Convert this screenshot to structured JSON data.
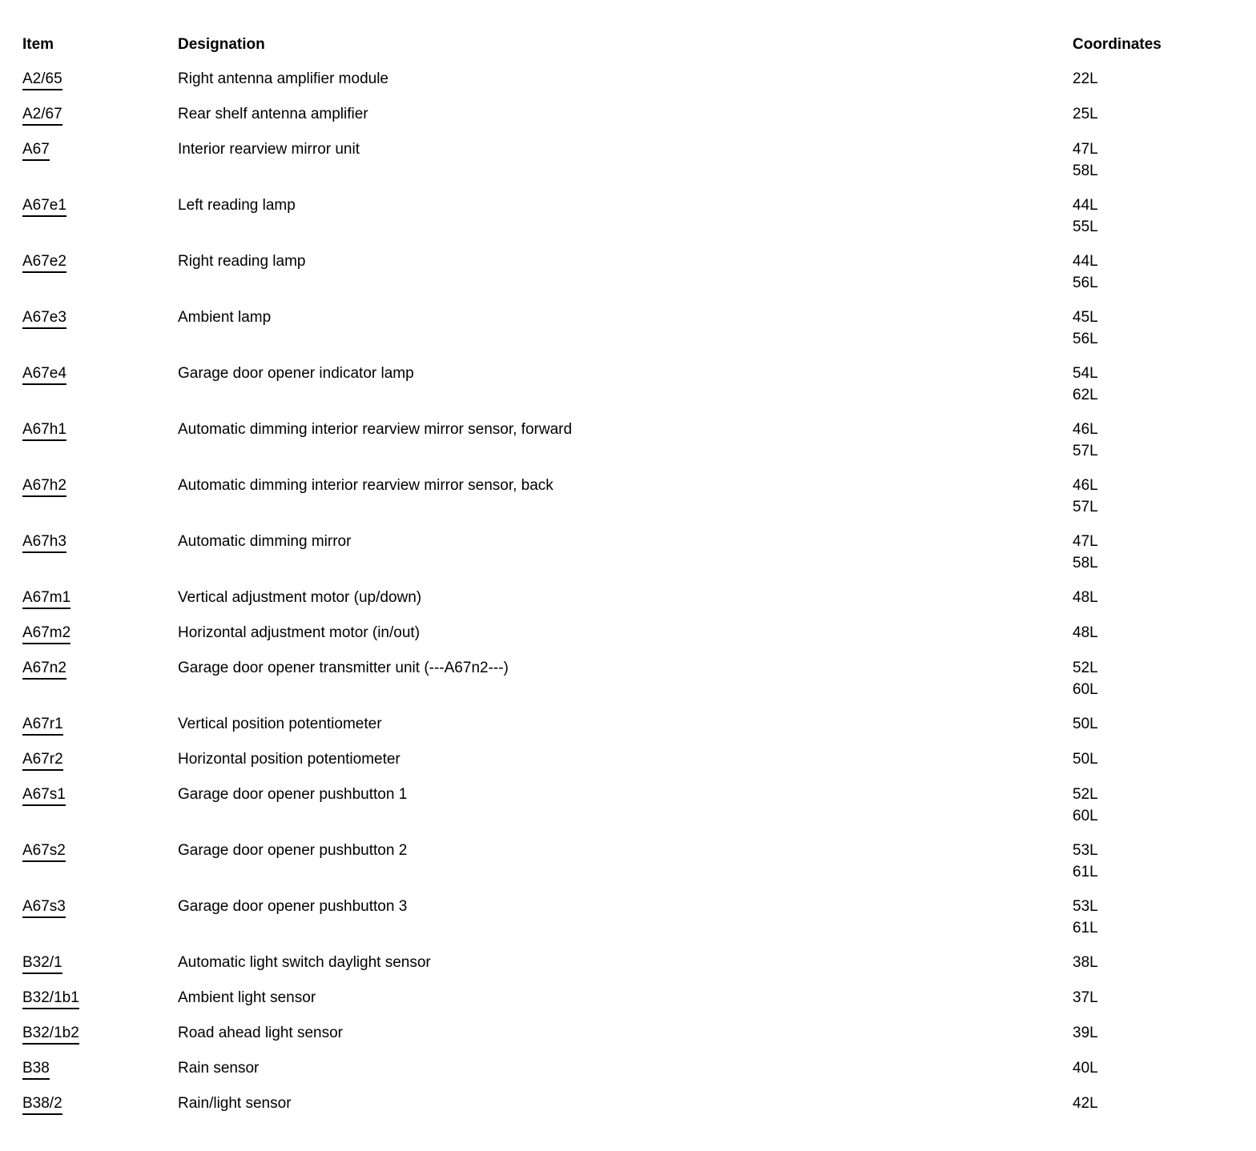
{
  "colors": {
    "text": "#000000",
    "background": "#ffffff"
  },
  "table": {
    "headers": {
      "item": "Item",
      "designation": "Designation",
      "coordinates": "Coordinates"
    },
    "rows": [
      {
        "item": "A2/65",
        "designation": "Right antenna amplifier module",
        "coordinates": [
          "22L"
        ]
      },
      {
        "item": "A2/67",
        "designation": "Rear shelf antenna amplifier",
        "coordinates": [
          "25L"
        ]
      },
      {
        "item": "A67",
        "designation": "Interior rearview mirror unit",
        "coordinates": [
          "47L",
          "58L"
        ]
      },
      {
        "item": "A67e1",
        "designation": "Left reading lamp",
        "coordinates": [
          "44L",
          "55L"
        ]
      },
      {
        "item": "A67e2",
        "designation": "Right reading lamp",
        "coordinates": [
          "44L",
          "56L"
        ]
      },
      {
        "item": "A67e3",
        "designation": "Ambient lamp",
        "coordinates": [
          "45L",
          "56L"
        ]
      },
      {
        "item": "A67e4",
        "designation": "Garage door opener indicator lamp",
        "coordinates": [
          "54L",
          "62L"
        ]
      },
      {
        "item": "A67h1",
        "designation": "Automatic dimming interior rearview mirror sensor, forward",
        "coordinates": [
          "46L",
          "57L"
        ]
      },
      {
        "item": "A67h2",
        "designation": "Automatic dimming interior rearview mirror sensor, back",
        "coordinates": [
          "46L",
          "57L"
        ]
      },
      {
        "item": "A67h3",
        "designation": "Automatic dimming mirror",
        "coordinates": [
          "47L",
          "58L"
        ]
      },
      {
        "item": "A67m1",
        "designation": "Vertical adjustment motor (up/down)",
        "coordinates": [
          "48L"
        ]
      },
      {
        "item": "A67m2",
        "designation": "Horizontal adjustment motor (in/out)",
        "coordinates": [
          "48L"
        ]
      },
      {
        "item": "A67n2",
        "designation": "Garage door opener transmitter unit (---A67n2---)",
        "coordinates": [
          "52L",
          "60L"
        ]
      },
      {
        "item": "A67r1",
        "designation": "Vertical position potentiometer",
        "coordinates": [
          "50L"
        ]
      },
      {
        "item": "A67r2",
        "designation": "Horizontal position potentiometer",
        "coordinates": [
          "50L"
        ]
      },
      {
        "item": "A67s1",
        "designation": "Garage door opener pushbutton 1",
        "coordinates": [
          "52L",
          "60L"
        ]
      },
      {
        "item": "A67s2",
        "designation": "Garage door opener pushbutton 2",
        "coordinates": [
          "53L",
          "61L"
        ]
      },
      {
        "item": "A67s3",
        "designation": "Garage door opener pushbutton 3",
        "coordinates": [
          "53L",
          "61L"
        ]
      },
      {
        "item": "B32/1",
        "designation": "Automatic light switch daylight sensor",
        "coordinates": [
          "38L"
        ]
      },
      {
        "item": "B32/1b1",
        "designation": "Ambient light sensor",
        "coordinates": [
          "37L"
        ]
      },
      {
        "item": "B32/1b2",
        "designation": "Road ahead light sensor",
        "coordinates": [
          "39L"
        ]
      },
      {
        "item": "B38",
        "designation": "Rain sensor",
        "coordinates": [
          "40L"
        ]
      },
      {
        "item": "B38/2",
        "designation": "Rain/light sensor",
        "coordinates": [
          "42L"
        ]
      }
    ]
  }
}
